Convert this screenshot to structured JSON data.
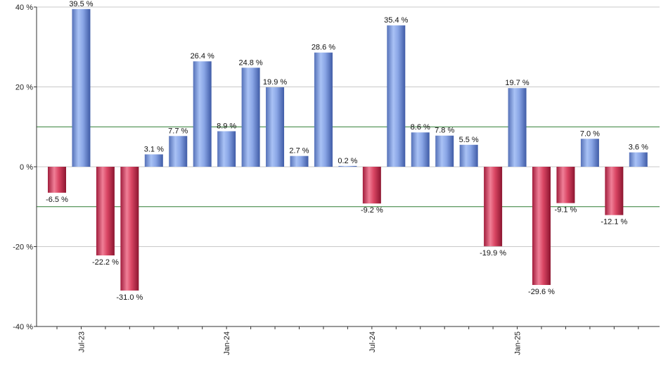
{
  "chart_data": {
    "type": "bar",
    "title": "",
    "xlabel": "",
    "ylabel": "",
    "ylim": [
      -40,
      40
    ],
    "yticks": [
      {
        "value": 40,
        "label": "40 %"
      },
      {
        "value": 20,
        "label": "20 %"
      },
      {
        "value": 0,
        "label": "0 %"
      },
      {
        "value": -20,
        "label": "-20 %"
      },
      {
        "value": -40,
        "label": "-40 %"
      }
    ],
    "reference_lines": [
      10,
      -10
    ],
    "reference_line_color": "#2e7d32",
    "grid": true,
    "positive_color": "#7f9fe0",
    "negative_color": "#c8304e",
    "xtick_labels": [
      {
        "index": 1,
        "label": "Jul-23"
      },
      {
        "index": 7,
        "label": "Jan-24"
      },
      {
        "index": 13,
        "label": "Jul-24"
      },
      {
        "index": 19,
        "label": "Jan-25"
      }
    ],
    "values": [
      -6.5,
      39.5,
      -22.2,
      -31.0,
      3.1,
      7.7,
      26.4,
      8.9,
      24.8,
      19.9,
      2.7,
      28.6,
      0.2,
      -9.2,
      35.4,
      8.6,
      7.8,
      5.5,
      -19.9,
      19.7,
      -29.6,
      -9.1,
      7.0,
      -12.1,
      3.6
    ],
    "labels": [
      "-6.5 %",
      "39.5 %",
      "-22.2 %",
      "-31.0 %",
      "3.1 %",
      "7.7 %",
      "26.4 %",
      "8.9 %",
      "24.8 %",
      "19.9 %",
      "2.7 %",
      "28.6 %",
      "0.2 %",
      "-9.2 %",
      "35.4 %",
      "8.6 %",
      "7.8 %",
      "5.5 %",
      "-19.9 %",
      "19.7 %",
      "-29.6 %",
      "-9.1 %",
      "7.0 %",
      "-12.1 %",
      "3.6 %"
    ]
  }
}
